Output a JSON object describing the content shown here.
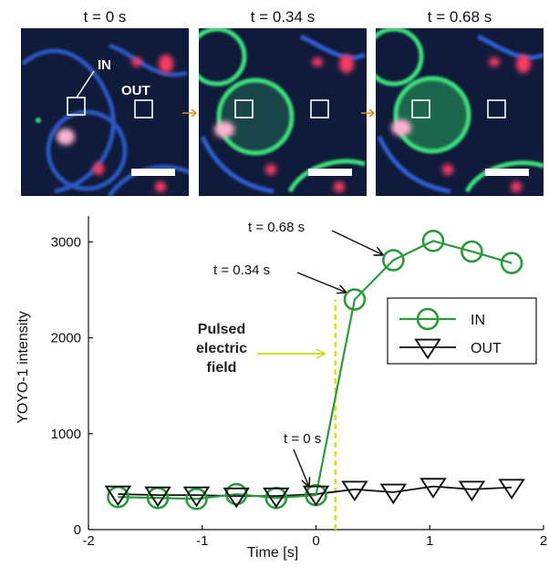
{
  "panels": [
    {
      "label": "t = 0 s"
    },
    {
      "label": "t = 0.34 s"
    },
    {
      "label": "t = 0.68 s"
    }
  ],
  "roi_labels": {
    "in": "IN",
    "out": "OUT"
  },
  "colors": {
    "in_series": "#2a9a3a",
    "out_series": "#111111",
    "pulse_line": "#d4e024",
    "pulse_text": "#c8d81a",
    "roi_box": "#ffffff",
    "transition_arrow": "#e08a1a",
    "micro_background": "#101a3a",
    "membrane_blue": "#2e5fd0",
    "membrane_green": "#3ce27a",
    "particles_red": "#ff3a64"
  },
  "chart_data": {
    "type": "line",
    "xlabel": "Time [s]",
    "ylabel": "YOYO-1 intensity",
    "xlim": [
      -2,
      2
    ],
    "ylim": [
      0,
      3000
    ],
    "xticks": [
      -2,
      -1,
      0,
      1,
      2
    ],
    "yticks": [
      0,
      1000,
      2000,
      3000
    ],
    "grid": false,
    "legend_position": "right",
    "series": [
      {
        "name": "IN",
        "marker": "circle",
        "x": [
          -1.74,
          -1.39,
          -1.05,
          -0.7,
          -0.35,
          0.0,
          0.34,
          0.68,
          1.03,
          1.37,
          1.72
        ],
        "y": [
          340,
          330,
          320,
          370,
          330,
          360,
          2400,
          2810,
          3010,
          2900,
          2780
        ]
      },
      {
        "name": "OUT",
        "marker": "triangle-down",
        "x": [
          -1.74,
          -1.39,
          -1.05,
          -0.7,
          -0.35,
          0.0,
          0.34,
          0.68,
          1.03,
          1.37,
          1.72
        ],
        "y": [
          370,
          360,
          360,
          350,
          350,
          370,
          420,
          390,
          450,
          420,
          440
        ]
      }
    ],
    "annotations": [
      {
        "text": "t = 0 s",
        "x": 0.0,
        "y": 360
      },
      {
        "text": "t = 0.34 s",
        "x": 0.34,
        "y": 2400
      },
      {
        "text": "t = 0.68 s",
        "x": 0.68,
        "y": 2810
      }
    ],
    "pulse": {
      "x": 0.17,
      "label_lines": [
        "Pulsed",
        "electric",
        "field"
      ]
    }
  }
}
